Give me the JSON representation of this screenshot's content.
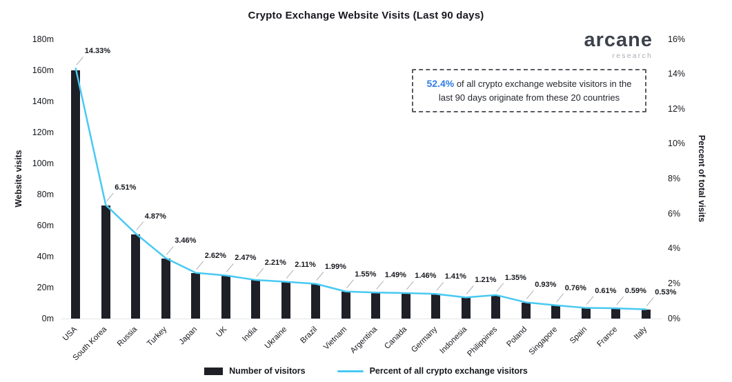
{
  "title": "Crypto Exchange Website Visits (Last 90 days)",
  "logo": {
    "name": "arcane",
    "subtitle": "research"
  },
  "annotation": {
    "highlight": "52.4%",
    "rest": " of all crypto exchange website visitors in the last 90 days originate from these 20 countries"
  },
  "legend": {
    "bar_label": "Number of visitors",
    "line_label": "Percent of all crypto exchange visitors"
  },
  "colors": {
    "bar": "#1e1f27",
    "line": "#47c9f2",
    "accent": "#2f7de1",
    "leader": "#a9aeb6"
  },
  "chart_data": {
    "type": "bar",
    "subtype": "bar+line dual-axis combo",
    "categories": [
      "USA",
      "South Korea",
      "Russia",
      "Turkey",
      "Japan",
      "UK",
      "India",
      "Ukraine",
      "Brazil",
      "Vietnam",
      "Argentina",
      "Canada",
      "Germany",
      "Indonesia",
      "Philippines",
      "Poland",
      "Singapore",
      "Spain",
      "France",
      "Italy"
    ],
    "series": [
      {
        "name": "Number of visitors",
        "type": "bar",
        "axis": "left",
        "unit": "million visits",
        "values": [
          160,
          72.7,
          54.4,
          38.6,
          29.3,
          27.6,
          24.7,
          23.6,
          22.2,
          17.3,
          16.6,
          16.3,
          15.7,
          13.5,
          15.1,
          10.4,
          8.5,
          6.8,
          6.6,
          5.9
        ]
      },
      {
        "name": "Percent of all crypto exchange visitors",
        "type": "line",
        "axis": "right",
        "unit": "%",
        "values": [
          14.33,
          6.51,
          4.87,
          3.46,
          2.62,
          2.47,
          2.21,
          2.11,
          1.99,
          1.55,
          1.49,
          1.46,
          1.41,
          1.21,
          1.35,
          0.93,
          0.76,
          0.61,
          0.59,
          0.53
        ]
      }
    ],
    "point_labels": [
      "14.33%",
      "6.51%",
      "4.87%",
      "3.46%",
      "2.62%",
      "2.47%",
      "2.21%",
      "2.11%",
      "1.99%",
      "1.55%",
      "1.49%",
      "1.46%",
      "1.41%",
      "1.21%",
      "1.35%",
      "0.93%",
      "0.76%",
      "0.61%",
      "0.59%",
      "0.53%"
    ],
    "ylabel_left": "Website visits",
    "ylabel_right": "Percent of total visits",
    "y_left_axis": {
      "min": 0,
      "max": 180,
      "tick_labels": [
        "0m",
        "20m",
        "40m",
        "60m",
        "80m",
        "100m",
        "120m",
        "140m",
        "160m",
        "180m"
      ]
    },
    "y_right_axis": {
      "min": 0,
      "max": 16,
      "tick_labels": [
        "0%",
        "2%",
        "4%",
        "6%",
        "8%",
        "10%",
        "12%",
        "14%",
        "16%"
      ]
    },
    "grid": false,
    "legend_position": "bottom"
  }
}
